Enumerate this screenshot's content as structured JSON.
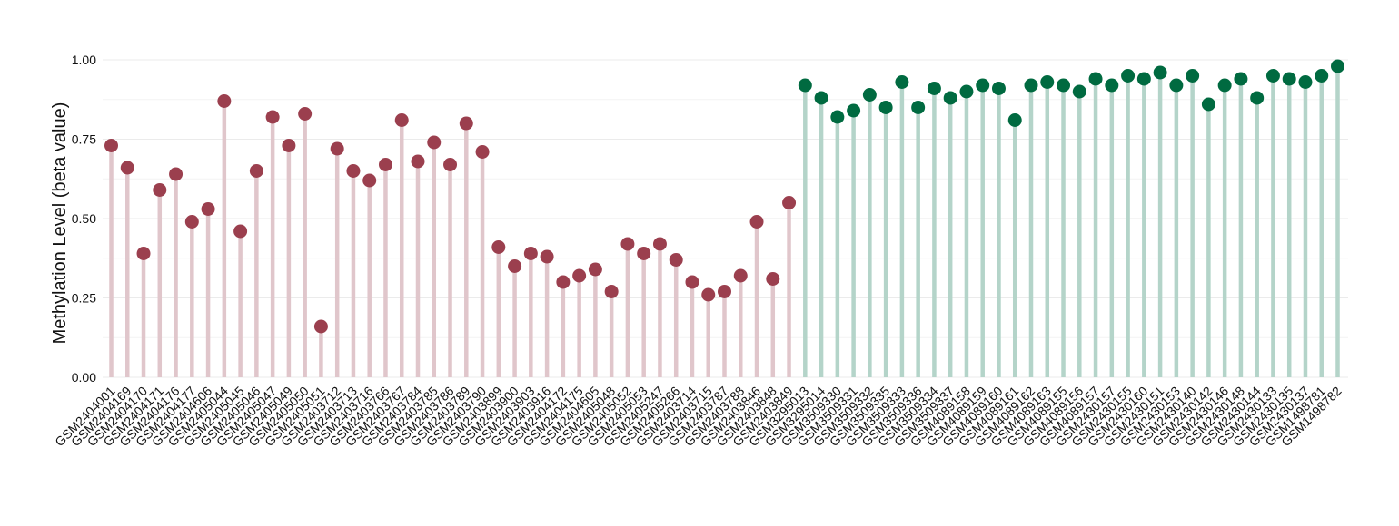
{
  "chart_data": {
    "type": "lollipop",
    "ylabel": "Methylation Level (beta value)",
    "ylim": [
      0,
      1.0
    ],
    "yticks": [
      0.0,
      0.25,
      0.5,
      0.75,
      1.0
    ],
    "ytick_labels": [
      "0.00",
      "0.25",
      "0.50",
      "0.75",
      "1.00"
    ],
    "grid": true,
    "colors": {
      "group_a_point": "#9b3f4e",
      "group_a_stem": "#e0c6cb",
      "group_b_point": "#006a40",
      "group_b_stem": "#b4d4c9"
    },
    "categories": [
      "GSM2404001",
      "GSM2404169",
      "GSM2404170",
      "GSM2404171",
      "GSM2404176",
      "GSM2404177",
      "GSM2404606",
      "GSM2405044",
      "GSM2405045",
      "GSM2405046",
      "GSM2405047",
      "GSM2405049",
      "GSM2405050",
      "GSM2405051",
      "GSM2403712",
      "GSM2403713",
      "GSM2403716",
      "GSM2403766",
      "GSM2403767",
      "GSM2403784",
      "GSM2403785",
      "GSM2403786",
      "GSM2403789",
      "GSM2403790",
      "GSM2403899",
      "GSM2403900",
      "GSM2403903",
      "GSM2403916",
      "GSM2404172",
      "GSM2404175",
      "GSM2404605",
      "GSM2405048",
      "GSM2405052",
      "GSM2405053",
      "GSM2405247",
      "GSM2405266",
      "GSM2403714",
      "GSM2403715",
      "GSM2403787",
      "GSM2403788",
      "GSM2403846",
      "GSM2403848",
      "GSM2403849",
      "GSM3295013",
      "GSM3295014",
      "GSM3509330",
      "GSM3509331",
      "GSM3509332",
      "GSM3509335",
      "GSM3509333",
      "GSM3509336",
      "GSM3509334",
      "GSM3509337",
      "GSM4089158",
      "GSM4089159",
      "GSM4089160",
      "GSM4089161",
      "GSM4089162",
      "GSM4089163",
      "GSM4089155",
      "GSM4089156",
      "GSM4089157",
      "GSM2430157",
      "GSM2430155",
      "GSM2430160",
      "GSM2430151",
      "GSM2430153",
      "GSM2430140",
      "GSM2430142",
      "GSM2430146",
      "GSM2430148",
      "GSM2430144",
      "GSM2430133",
      "GSM2430135",
      "GSM2430137",
      "GSM1498781",
      "GSM1498782"
    ],
    "values": [
      0.73,
      0.66,
      0.39,
      0.59,
      0.64,
      0.49,
      0.53,
      0.87,
      0.46,
      0.65,
      0.82,
      0.73,
      0.83,
      0.16,
      0.72,
      0.65,
      0.62,
      0.67,
      0.81,
      0.68,
      0.74,
      0.67,
      0.8,
      0.71,
      0.41,
      0.35,
      0.39,
      0.38,
      0.3,
      0.32,
      0.34,
      0.27,
      0.42,
      0.39,
      0.42,
      0.37,
      0.3,
      0.26,
      0.27,
      0.32,
      0.49,
      0.31,
      0.55,
      0.92,
      0.88,
      0.82,
      0.84,
      0.89,
      0.85,
      0.93,
      0.85,
      0.91,
      0.88,
      0.9,
      0.92,
      0.91,
      0.81,
      0.92,
      0.93,
      0.92,
      0.9,
      0.94,
      0.92,
      0.95,
      0.94,
      0.96,
      0.92,
      0.95,
      0.86,
      0.92,
      0.94,
      0.88,
      0.95,
      0.94,
      0.93,
      0.95,
      0.98
    ],
    "groups": [
      "a",
      "a",
      "a",
      "a",
      "a",
      "a",
      "a",
      "a",
      "a",
      "a",
      "a",
      "a",
      "a",
      "a",
      "a",
      "a",
      "a",
      "a",
      "a",
      "a",
      "a",
      "a",
      "a",
      "a",
      "a",
      "a",
      "a",
      "a",
      "a",
      "a",
      "a",
      "a",
      "a",
      "a",
      "a",
      "a",
      "a",
      "a",
      "a",
      "a",
      "a",
      "a",
      "a",
      "b",
      "b",
      "b",
      "b",
      "b",
      "b",
      "b",
      "b",
      "b",
      "b",
      "b",
      "b",
      "b",
      "b",
      "b",
      "b",
      "b",
      "b",
      "b",
      "b",
      "b",
      "b",
      "b",
      "b",
      "b",
      "b",
      "b",
      "b",
      "b",
      "b",
      "b",
      "b",
      "b",
      "b"
    ]
  }
}
